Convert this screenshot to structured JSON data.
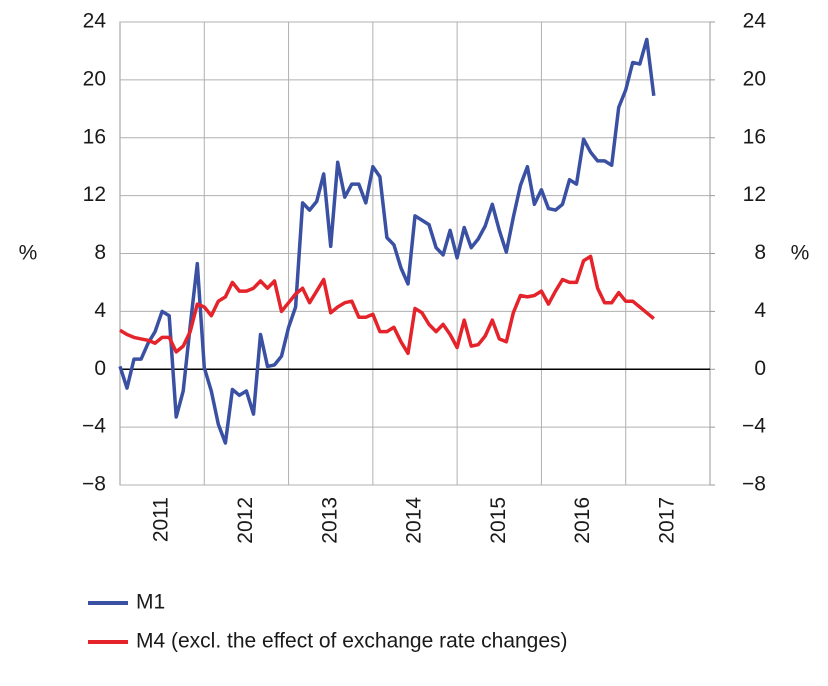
{
  "chart_data": {
    "type": "line",
    "ylabel": "%",
    "y2label": "%",
    "categories": [
      null,
      null,
      null,
      null,
      null,
      null,
      "2011",
      null,
      null,
      null,
      null,
      null,
      null,
      null,
      null,
      null,
      null,
      null,
      "2012",
      null,
      null,
      null,
      null,
      null,
      null,
      null,
      null,
      null,
      null,
      null,
      "2013",
      null,
      null,
      null,
      null,
      null,
      null,
      null,
      null,
      null,
      null,
      null,
      "2014",
      null,
      null,
      null,
      null,
      null,
      null,
      null,
      null,
      null,
      null,
      null,
      "2015",
      null,
      null,
      null,
      null,
      null,
      null,
      null,
      null,
      null,
      null,
      null,
      "2016",
      null,
      null,
      null,
      null,
      null,
      null,
      null,
      null,
      null,
      null,
      null,
      "2017",
      null,
      null,
      null,
      null,
      null
    ],
    "series": [
      {
        "name": "M1",
        "color": "#3a50a2",
        "values": [
          0.2,
          -1.3,
          0.7,
          0.7,
          1.8,
          2.6,
          4.0,
          3.7,
          -3.3,
          -1.5,
          3.0,
          7.3,
          0.1,
          -1.5,
          -3.8,
          -5.1,
          -1.4,
          -1.8,
          -1.5,
          -3.1,
          2.4,
          0.2,
          0.3,
          0.9,
          2.9,
          4.3,
          11.5,
          11.0,
          11.6,
          13.5,
          8.5,
          14.3,
          11.9,
          12.8,
          12.8,
          11.5,
          14.0,
          13.3,
          9.1,
          8.6,
          7.0,
          5.9,
          10.6,
          10.3,
          10.0,
          8.4,
          7.9,
          9.6,
          7.7,
          9.8,
          8.4,
          9.0,
          9.9,
          11.4,
          9.6,
          8.1,
          10.5,
          12.7,
          14.0,
          11.4,
          12.4,
          11.1,
          11.0,
          11.4,
          13.1,
          12.8,
          15.9,
          15.0,
          14.4,
          14.4,
          14.1,
          18.1,
          19.3,
          21.2,
          21.1,
          22.8,
          18.9,
          null,
          null,
          null,
          null,
          null,
          null,
          null
        ]
      },
      {
        "name": "M4 (excl. the effect of exchange rate changes)",
        "color": "#e5232b",
        "values": [
          2.7,
          2.4,
          2.2,
          2.1,
          2.0,
          1.8,
          2.2,
          2.2,
          1.2,
          1.6,
          2.6,
          4.5,
          4.3,
          3.7,
          4.7,
          5.0,
          6.0,
          5.4,
          5.4,
          5.6,
          6.1,
          5.6,
          6.1,
          4.0,
          4.6,
          5.2,
          5.6,
          4.6,
          5.4,
          6.2,
          3.9,
          4.3,
          4.6,
          4.7,
          3.6,
          3.6,
          3.8,
          2.6,
          2.6,
          2.9,
          1.9,
          1.1,
          4.2,
          3.9,
          3.1,
          2.6,
          3.1,
          2.4,
          1.5,
          3.4,
          1.6,
          1.7,
          2.3,
          3.4,
          2.1,
          1.9,
          3.9,
          5.1,
          5.0,
          5.1,
          5.4,
          4.5,
          5.4,
          6.2,
          6.0,
          6.0,
          7.5,
          7.8,
          5.6,
          4.6,
          4.6,
          5.3,
          4.7,
          4.7,
          4.3,
          3.9,
          3.5,
          null,
          null,
          null,
          null,
          null,
          null,
          null
        ]
      }
    ],
    "ylim": [
      -8,
      24
    ],
    "yticks": [
      {
        "value": -8,
        "label": "−8"
      },
      {
        "value": -4,
        "label": "−4"
      },
      0,
      4,
      8,
      12,
      16,
      20,
      24
    ],
    "y2lim": [
      -8,
      24
    ],
    "y2ticks": [
      {
        "value": -8,
        "label": "−8"
      },
      {
        "value": -4,
        "label": "−4"
      },
      0,
      4,
      8,
      12,
      16,
      20,
      24
    ],
    "grid": true,
    "legend": "bottom"
  }
}
